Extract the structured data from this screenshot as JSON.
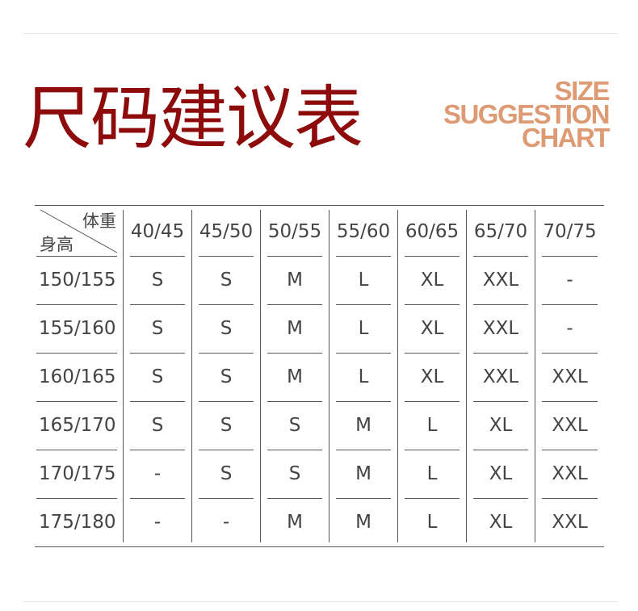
{
  "header": {
    "title": "尺码建议表",
    "subtitle_lines": [
      "SIZE",
      "SUGGESTION",
      "CHART"
    ]
  },
  "colors": {
    "title": "#8e0b0b",
    "subtitle": "#dd9a73"
  },
  "table": {
    "corner_weight_label": "体重",
    "corner_height_label": "身高",
    "columns": [
      "40/45",
      "45/50",
      "50/55",
      "55/60",
      "60/65",
      "65/70",
      "70/75"
    ],
    "rows": [
      {
        "height": "150/155",
        "sizes": [
          "S",
          "S",
          "M",
          "L",
          "XL",
          "XXL",
          "-"
        ]
      },
      {
        "height": "155/160",
        "sizes": [
          "S",
          "S",
          "M",
          "L",
          "XL",
          "XXL",
          "-"
        ]
      },
      {
        "height": "160/165",
        "sizes": [
          "S",
          "S",
          "M",
          "L",
          "XL",
          "XXL",
          "XXL"
        ]
      },
      {
        "height": "165/170",
        "sizes": [
          "S",
          "S",
          "S",
          "M",
          "L",
          "XL",
          "XXL"
        ]
      },
      {
        "height": "170/175",
        "sizes": [
          "-",
          "S",
          "S",
          "M",
          "L",
          "XL",
          "XXL"
        ]
      },
      {
        "height": "175/180",
        "sizes": [
          "-",
          "-",
          "M",
          "M",
          "L",
          "XL",
          "XXL"
        ]
      }
    ]
  }
}
